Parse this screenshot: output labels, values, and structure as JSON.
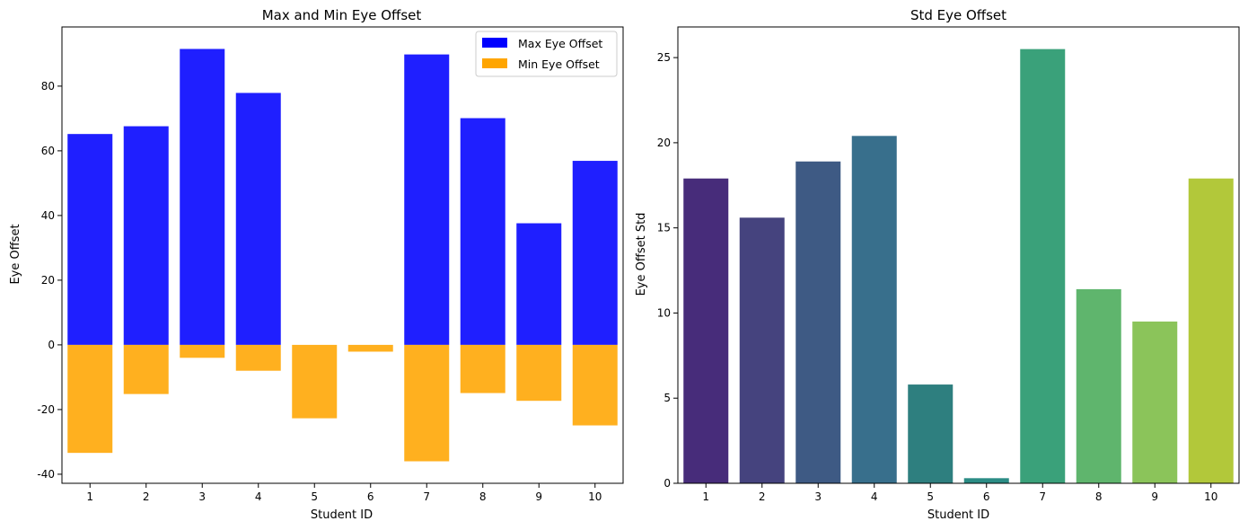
{
  "chart_data": [
    {
      "type": "bar",
      "title": "Max and Min Eye Offset",
      "xlabel": "Student ID",
      "ylabel": "Eye Offset",
      "categories": [
        "1",
        "2",
        "3",
        "4",
        "5",
        "6",
        "7",
        "8",
        "9",
        "10"
      ],
      "series": [
        {
          "name": "Max Eye Offset",
          "color": "#0000ff",
          "values": [
            65.2,
            67.6,
            91.5,
            77.9,
            0,
            0,
            89.8,
            70.1,
            37.6,
            56.9
          ]
        },
        {
          "name": "Min Eye Offset",
          "color": "#ffa500",
          "values": [
            -33.4,
            -15.2,
            -4.0,
            -8.0,
            -22.7,
            -2.1,
            -36.0,
            -14.9,
            -17.3,
            -24.9
          ]
        }
      ],
      "yticks": [
        -40,
        -20,
        0,
        20,
        40,
        60,
        80
      ],
      "ylim": [
        -42.8,
        98.3
      ],
      "legend": "top-right",
      "grid": false
    },
    {
      "type": "bar",
      "title": "Std Eye Offset",
      "xlabel": "Student ID",
      "ylabel": "Eye Offset Std",
      "categories": [
        "1",
        "2",
        "3",
        "4",
        "5",
        "6",
        "7",
        "8",
        "9",
        "10"
      ],
      "values": [
        17.9,
        15.6,
        18.9,
        20.4,
        5.8,
        0.3,
        25.5,
        11.4,
        9.5,
        17.9
      ],
      "colors": [
        "#472c7a",
        "#45437e",
        "#3e5a84",
        "#386f8c",
        "#2e7f7f",
        "#2b8c85",
        "#3aa17a",
        "#5fb56d",
        "#8bc45a",
        "#b2c83a"
      ],
      "yticks": [
        0,
        5,
        10,
        15,
        20,
        25
      ],
      "ylim": [
        0,
        26.8
      ],
      "grid": false
    }
  ]
}
